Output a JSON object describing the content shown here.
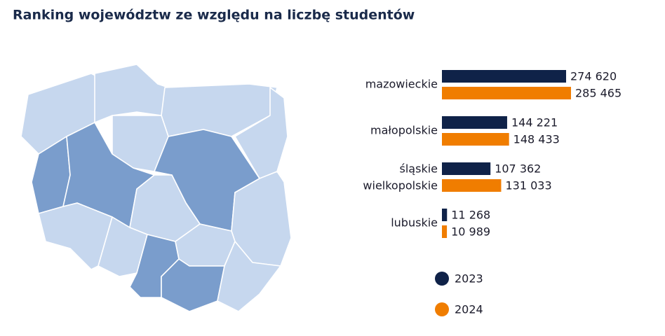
{
  "chart_data": {
    "type": "bar",
    "orientation": "horizontal",
    "title": "Ranking województw ze względu na liczbę studentów",
    "categories": [
      "mazowieckie",
      "małopolskie",
      [
        "śląskie",
        "wielkopolskie"
      ],
      "lubuskie"
    ],
    "series": [
      {
        "name": "2023",
        "color": "#0f2248",
        "values": [
          274620,
          144221,
          107362,
          11268
        ],
        "value_labels": [
          "274 620",
          "144 221",
          "107 362",
          "11 268"
        ]
      },
      {
        "name": "2024",
        "color": "#f07d00",
        "values": [
          285465,
          148433,
          131033,
          10989
        ],
        "value_labels": [
          "285 465",
          "148 433",
          "131 033",
          "10 989"
        ]
      }
    ]
  }
}
